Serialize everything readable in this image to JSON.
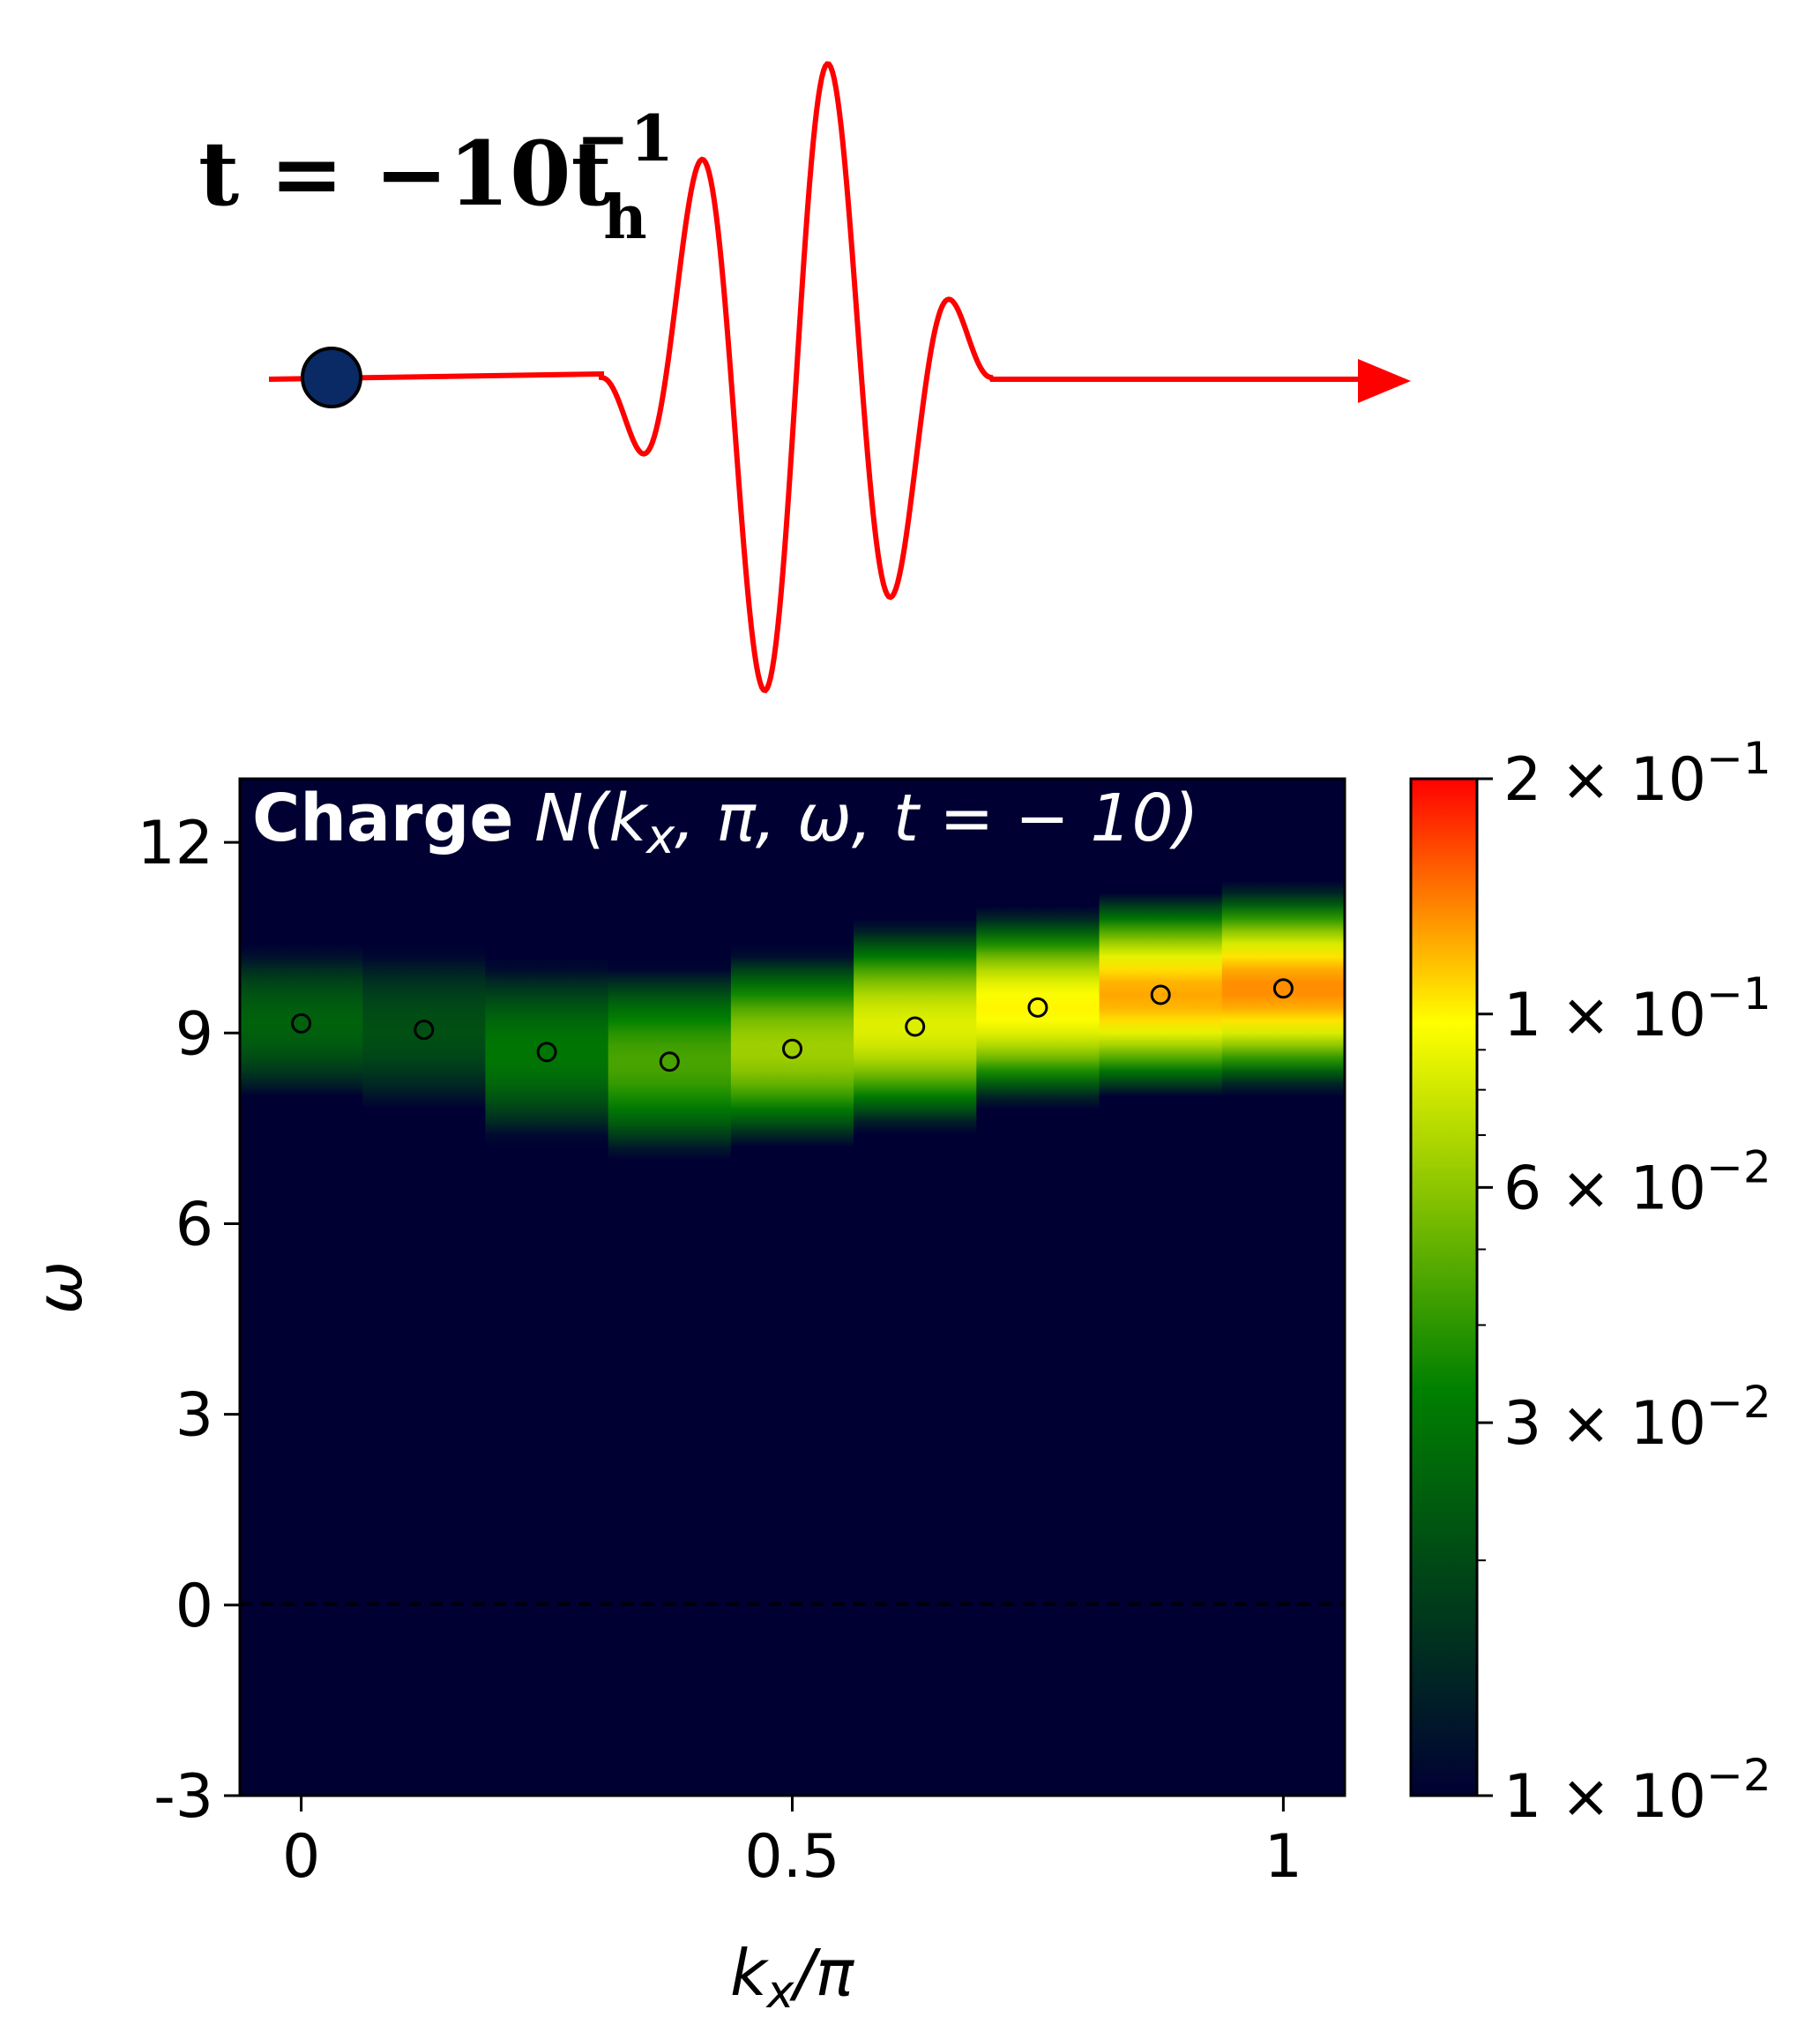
{
  "pulse": {
    "time_label": "t = −10",
    "time_label_sup": "−1",
    "time_label_base": "t",
    "time_label_sub": "h",
    "wave_color": "#ff0000",
    "particle_color": "#0a2a66"
  },
  "chart_data": {
    "type": "heatmap",
    "title_bold": "Charge",
    "title_math": "N(k",
    "title_sub": "x",
    "title_rest": ", π, ω, t = − 10)",
    "xlabel": "k",
    "xlabel_sub": "x",
    "xlabel_rest": "/π",
    "ylabel": "ω",
    "xlim": [
      -0.0625,
      1.0625
    ],
    "ylim": [
      -3,
      13
    ],
    "xticks": [
      0,
      0.5,
      1
    ],
    "xtick_labels": [
      "0",
      "0.5",
      "1"
    ],
    "yticks": [
      -3,
      0,
      3,
      6,
      9,
      12
    ],
    "ytick_labels": [
      "-3",
      "0",
      "3",
      "6",
      "9",
      "12"
    ],
    "reference_line": {
      "y": 0,
      "style": "dashed"
    },
    "background_color": "#000033",
    "colorscale": {
      "type": "log",
      "min": 0.01,
      "max": 0.2,
      "colors": [
        "#000033",
        "#008000",
        "#ffff00",
        "#ff0000"
      ],
      "tick_labels": [
        "2 × 10−1",
        "1 × 10−1",
        "6 × 10−2",
        "3 × 10−2",
        "1 × 10−2"
      ],
      "tick_label_bases": [
        "2 × 10",
        "1 × 10",
        "6 × 10",
        "3 × 10",
        "1 × 10"
      ],
      "tick_label_exps": [
        "−1",
        "−1",
        "−2",
        "−2",
        "−2"
      ],
      "tick_values": [
        0.2,
        0.1,
        0.06,
        0.03,
        0.01
      ]
    },
    "columns": [
      {
        "kx": 0.0,
        "center": 9.15,
        "width": 1.2,
        "peak": 0.025
      },
      {
        "kx": 0.125,
        "center": 9.05,
        "width": 1.4,
        "peak": 0.021
      },
      {
        "kx": 0.25,
        "center": 8.7,
        "width": 1.3,
        "peak": 0.03
      },
      {
        "kx": 0.375,
        "center": 8.55,
        "width": 1.2,
        "peak": 0.045
      },
      {
        "kx": 0.5,
        "center": 8.75,
        "width": 1.1,
        "peak": 0.065
      },
      {
        "kx": 0.625,
        "center": 9.1,
        "width": 1.1,
        "peak": 0.085
      },
      {
        "kx": 0.75,
        "center": 9.4,
        "width": 1.0,
        "peak": 0.1
      },
      {
        "kx": 0.875,
        "center": 9.6,
        "width": 1.0,
        "peak": 0.125
      },
      {
        "kx": 1.0,
        "center": 9.7,
        "width": 1.0,
        "peak": 0.135
      }
    ],
    "markers": [
      {
        "x": 0.0,
        "y": 9.15
      },
      {
        "x": 0.125,
        "y": 9.05
      },
      {
        "x": 0.25,
        "y": 8.7
      },
      {
        "x": 0.375,
        "y": 8.55
      },
      {
        "x": 0.5,
        "y": 8.75
      },
      {
        "x": 0.625,
        "y": 9.1
      },
      {
        "x": 0.75,
        "y": 9.4
      },
      {
        "x": 0.875,
        "y": 9.6
      },
      {
        "x": 1.0,
        "y": 9.7
      }
    ]
  }
}
